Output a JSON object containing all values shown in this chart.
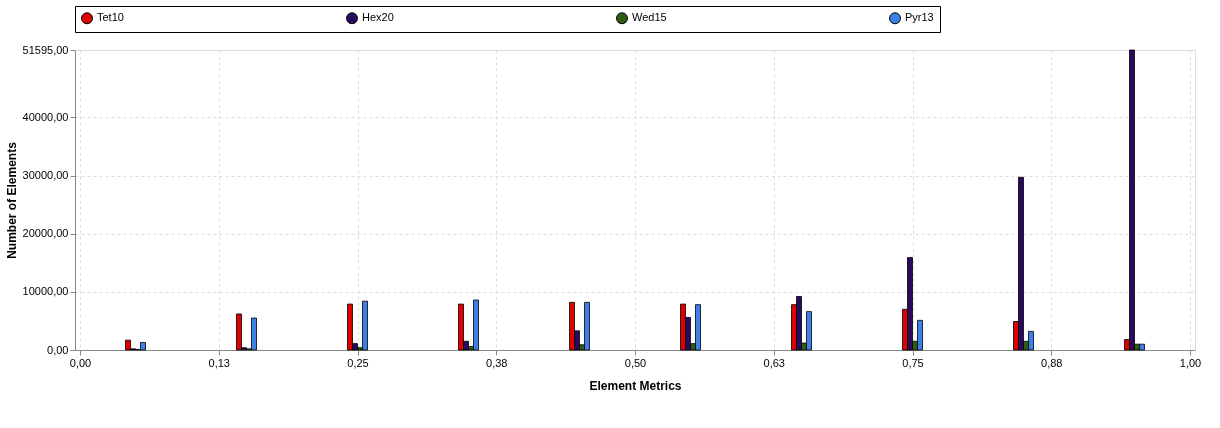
{
  "chart_data": {
    "type": "bar",
    "xlabel": "Element Metrics",
    "ylabel": "Number of Elements",
    "x": [
      0.05,
      0.15,
      0.25,
      0.35,
      0.45,
      0.55,
      0.65,
      0.75,
      0.85,
      0.95
    ],
    "series": [
      {
        "name": "Tet10",
        "color": "#e00000",
        "values": [
          1700,
          6200,
          7900,
          7900,
          8200,
          7900,
          7800,
          7000,
          4900,
          1800
        ]
      },
      {
        "name": "Hex20",
        "color": "#2a0a5e",
        "values": [
          200,
          400,
          1100,
          1500,
          3300,
          5600,
          9200,
          15900,
          29700,
          51595
        ]
      },
      {
        "name": "Wed15",
        "color": "#2e5e12",
        "values": [
          100,
          200,
          400,
          600,
          900,
          1100,
          1200,
          1500,
          1500,
          1000
        ]
      },
      {
        "name": "Pyr13",
        "color": "#3f7fe8",
        "values": [
          1300,
          5500,
          8400,
          8600,
          8200,
          7800,
          6600,
          5100,
          3200,
          1000
        ]
      }
    ],
    "xlim": [
      0,
      1
    ],
    "xticks": [
      {
        "value": 0,
        "label": "0,00"
      },
      {
        "value": 0.125,
        "label": "0,13"
      },
      {
        "value": 0.25,
        "label": "0,25"
      },
      {
        "value": 0.375,
        "label": "0,38"
      },
      {
        "value": 0.5,
        "label": "0,50"
      },
      {
        "value": 0.625,
        "label": "0,63"
      },
      {
        "value": 0.75,
        "label": "0,75"
      },
      {
        "value": 0.875,
        "label": "0,88"
      },
      {
        "value": 1,
        "label": "1,00"
      }
    ],
    "ylim": [
      0,
      51595
    ],
    "yticks": [
      {
        "value": 0,
        "label": "0,00"
      },
      {
        "value": 10000,
        "label": "10000,00"
      },
      {
        "value": 20000,
        "label": "20000,00"
      },
      {
        "value": 30000,
        "label": "30000,00"
      },
      {
        "value": 40000,
        "label": "40000,00"
      },
      {
        "value": 51595,
        "label": "51595,00"
      }
    ],
    "grid": true,
    "legend": "top"
  }
}
